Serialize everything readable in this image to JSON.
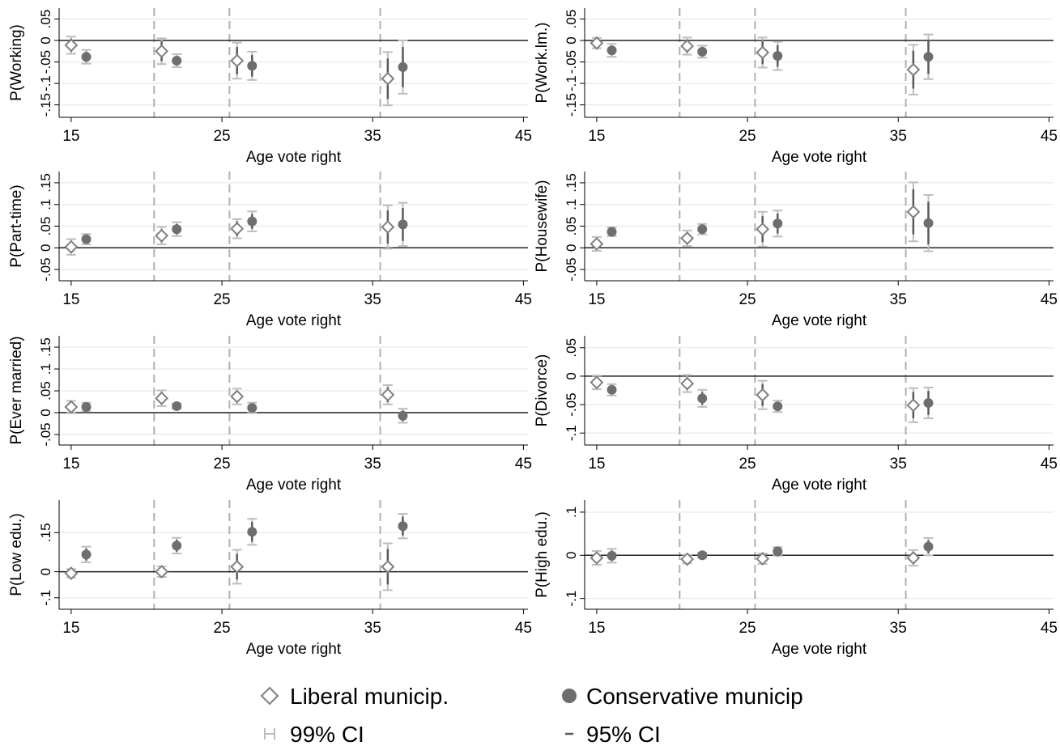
{
  "legend": {
    "series": [
      "Liberal municip.",
      "Conservative municip"
    ],
    "ci": [
      "99% CI",
      "95% CI"
    ]
  },
  "chart_data": [
    {
      "type": "errorbar",
      "ylabel": "P(Working)",
      "xlabel": "Age vote right",
      "xlim": [
        14.2,
        45.3
      ],
      "xticks": [
        15,
        25,
        35,
        45
      ],
      "ylim": [
        -0.179,
        0.0755
      ],
      "yticks": [
        {
          "value": -0.15,
          "label": "-.15"
        },
        {
          "value": -0.1,
          "label": "-.1"
        },
        {
          "value": -0.05,
          "label": "-.05"
        },
        0,
        {
          "value": 0.05,
          "label": ".05"
        }
      ],
      "grid": true,
      "hline": 0,
      "vlines": [
        20.5,
        25.5,
        35.5
      ],
      "series": [
        {
          "marker": "diamond",
          "color": "#7f7f7f",
          "x": [
            15,
            21,
            26,
            36
          ],
          "values": [
            -0.011,
            -0.025,
            -0.047,
            -0.089
          ],
          "ci99_low": [
            -0.031,
            -0.055,
            -0.089,
            -0.151
          ],
          "ci99_high": [
            0.009,
            0.005,
            -0.005,
            -0.027
          ],
          "ci95_low": [
            -0.026,
            -0.048,
            -0.079,
            -0.136
          ],
          "ci95_high": [
            0.004,
            -0.002,
            -0.015,
            -0.042
          ]
        },
        {
          "marker": "circle",
          "color": "#6e6e6e",
          "x": [
            16,
            22,
            27,
            37
          ],
          "values": [
            -0.038,
            -0.047,
            -0.059,
            -0.062
          ],
          "ci99_low": [
            -0.054,
            -0.062,
            -0.092,
            -0.124
          ],
          "ci99_high": [
            -0.022,
            -0.032,
            -0.026,
            0
          ],
          "ci95_low": [
            -0.05,
            -0.058,
            -0.084,
            -0.109
          ],
          "ci95_high": [
            -0.026,
            -0.036,
            -0.034,
            -0.015
          ]
        }
      ]
    },
    {
      "type": "errorbar",
      "ylabel": "P(Work.lm.)",
      "xlabel": "Age vote right",
      "xlim": [
        14.2,
        45.3
      ],
      "xticks": [
        15,
        25,
        35,
        45
      ],
      "ylim": [
        -0.179,
        0.0755
      ],
      "yticks": [
        {
          "value": -0.15,
          "label": "-.15"
        },
        {
          "value": -0.1,
          "label": "-.1"
        },
        {
          "value": -0.05,
          "label": "-.05"
        },
        0,
        {
          "value": 0.05,
          "label": ".05"
        }
      ],
      "grid": true,
      "hline": 0,
      "vlines": [
        20.5,
        25.5,
        35.5
      ],
      "series": [
        {
          "marker": "diamond",
          "color": "#7f7f7f",
          "x": [
            15,
            21,
            26,
            36
          ],
          "values": [
            -0.006,
            -0.013,
            -0.028,
            -0.068
          ],
          "ci99_low": [
            -0.018,
            -0.033,
            -0.063,
            -0.126
          ],
          "ci99_high": [
            0.006,
            0.007,
            0.007,
            -0.01
          ],
          "ci95_low": [
            -0.015,
            -0.028,
            -0.055,
            -0.112
          ],
          "ci95_high": [
            0.003,
            0.002,
            -0.001,
            -0.024
          ]
        },
        {
          "marker": "circle",
          "color": "#6e6e6e",
          "x": [
            16,
            22,
            27,
            37
          ],
          "values": [
            -0.023,
            -0.026,
            -0.036,
            -0.038
          ],
          "ci99_low": [
            -0.038,
            -0.04,
            -0.069,
            -0.09
          ],
          "ci99_high": [
            -0.008,
            -0.012,
            -0.003,
            0.014
          ],
          "ci95_low": [
            -0.034,
            -0.037,
            -0.061,
            -0.078
          ],
          "ci95_high": [
            -0.012,
            -0.015,
            -0.011,
            0.002
          ]
        }
      ]
    },
    {
      "type": "errorbar",
      "ylabel": "P(Part-time)",
      "xlabel": "Age vote right",
      "xlim": [
        14.2,
        45.3
      ],
      "xticks": [
        15,
        25,
        35,
        45
      ],
      "ylim": [
        -0.076,
        0.176
      ],
      "yticks": [
        {
          "value": -0.05,
          "label": "-.05"
        },
        0,
        {
          "value": 0.05,
          "label": ".05"
        },
        {
          "value": 0.1,
          "label": ".1"
        },
        {
          "value": 0.15,
          "label": ".15"
        }
      ],
      "grid": true,
      "hline": 0,
      "vlines": [
        20.5,
        25.5,
        35.5
      ],
      "series": [
        {
          "marker": "diamond",
          "color": "#7f7f7f",
          "x": [
            15,
            21,
            26,
            36
          ],
          "values": [
            0.002,
            0.028,
            0.044,
            0.048
          ],
          "ci99_low": [
            -0.016,
            0.008,
            0.022,
            -0.002
          ],
          "ci99_high": [
            0.02,
            0.048,
            0.066,
            0.098
          ],
          "ci95_low": [
            -0.012,
            0.013,
            0.027,
            0.01
          ],
          "ci95_high": [
            0.016,
            0.043,
            0.061,
            0.086
          ]
        },
        {
          "marker": "circle",
          "color": "#6e6e6e",
          "x": [
            16,
            22,
            27,
            37
          ],
          "values": [
            0.02,
            0.043,
            0.061,
            0.054
          ],
          "ci99_low": [
            0.008,
            0.027,
            0.038,
            0.004
          ],
          "ci99_high": [
            0.032,
            0.059,
            0.084,
            0.104
          ],
          "ci95_low": [
            0.011,
            0.031,
            0.044,
            0.016
          ],
          "ci95_high": [
            0.029,
            0.055,
            0.078,
            0.092
          ]
        }
      ]
    },
    {
      "type": "errorbar",
      "ylabel": "P(Housewife)",
      "xlabel": "Age vote right",
      "xlim": [
        14.2,
        45.3
      ],
      "xticks": [
        15,
        25,
        35,
        45
      ],
      "ylim": [
        -0.076,
        0.176
      ],
      "yticks": [
        {
          "value": -0.05,
          "label": "-.05"
        },
        0,
        {
          "value": 0.05,
          "label": ".05"
        },
        {
          "value": 0.1,
          "label": ".1"
        },
        {
          "value": 0.15,
          "label": ".15"
        }
      ],
      "grid": true,
      "hline": 0,
      "vlines": [
        20.5,
        25.5,
        35.5
      ],
      "series": [
        {
          "marker": "diamond",
          "color": "#7f7f7f",
          "x": [
            15,
            21,
            26,
            36
          ],
          "values": [
            0.009,
            0.022,
            0.043,
            0.083
          ],
          "ci99_low": [
            -0.007,
            0.004,
            0.003,
            0.015
          ],
          "ci99_high": [
            0.025,
            0.04,
            0.083,
            0.151
          ],
          "ci95_low": [
            -0.003,
            0.008,
            0.013,
            0.031
          ],
          "ci95_high": [
            0.021,
            0.036,
            0.073,
            0.135
          ]
        },
        {
          "marker": "circle",
          "color": "#6e6e6e",
          "x": [
            16,
            22,
            27,
            37
          ],
          "values": [
            0.037,
            0.043,
            0.056,
            0.057
          ],
          "ci99_low": [
            0.027,
            0.031,
            0.026,
            -0.008
          ],
          "ci99_high": [
            0.047,
            0.055,
            0.086,
            0.122
          ],
          "ci95_low": [
            0.029,
            0.034,
            0.033,
            0.008
          ],
          "ci95_high": [
            0.045,
            0.052,
            0.079,
            0.106
          ]
        }
      ]
    },
    {
      "type": "errorbar",
      "ylabel": "P(Ever married)",
      "xlabel": "Age vote right",
      "xlim": [
        14.2,
        45.3
      ],
      "xticks": [
        15,
        25,
        35,
        45
      ],
      "ylim": [
        -0.074,
        0.176
      ],
      "yticks": [
        {
          "value": -0.05,
          "label": "-.05"
        },
        0,
        {
          "value": 0.05,
          "label": ".05"
        },
        {
          "value": 0.1,
          "label": ".1"
        },
        {
          "value": 0.15,
          "label": ".15"
        }
      ],
      "grid": true,
      "hline": 0,
      "vlines": [
        20.5,
        25.5,
        35.5
      ],
      "series": [
        {
          "marker": "diamond",
          "color": "#7f7f7f",
          "x": [
            15,
            21,
            26,
            36
          ],
          "values": [
            0.013,
            0.033,
            0.037,
            0.041
          ],
          "ci99_low": [
            -0.001,
            0.015,
            0.019,
            0.019
          ],
          "ci99_high": [
            0.027,
            0.051,
            0.055,
            0.063
          ],
          "ci95_low": [
            0.002,
            0.019,
            0.023,
            0.024
          ],
          "ci95_high": [
            0.024,
            0.047,
            0.051,
            0.058
          ]
        },
        {
          "marker": "circle",
          "color": "#6e6e6e",
          "x": [
            16,
            22,
            27,
            37
          ],
          "values": [
            0.013,
            0.015,
            0.011,
            -0.007
          ],
          "ci99_low": [
            0.003,
            0.009,
            -0.001,
            -0.023
          ],
          "ci99_high": [
            0.023,
            0.021,
            0.023,
            0.009
          ],
          "ci95_low": [
            0.005,
            0.01,
            0.002,
            -0.019
          ],
          "ci95_high": [
            0.021,
            0.02,
            0.02,
            0.005
          ]
        }
      ]
    },
    {
      "type": "errorbar",
      "ylabel": "P(Divorce)",
      "xlabel": "Age vote right",
      "xlim": [
        14.2,
        45.3
      ],
      "xticks": [
        15,
        25,
        35,
        45
      ],
      "ylim": [
        -0.121,
        0.071
      ],
      "yticks": [
        {
          "value": -0.1,
          "label": "-.1"
        },
        {
          "value": -0.05,
          "label": "-.05"
        },
        0,
        {
          "value": 0.05,
          "label": ".05"
        }
      ],
      "grid": true,
      "hline": 0,
      "vlines": [
        20.5,
        25.5,
        35.5
      ],
      "series": [
        {
          "marker": "diamond",
          "color": "#7f7f7f",
          "x": [
            15,
            21,
            26,
            36
          ],
          "values": [
            -0.011,
            -0.013,
            -0.033,
            -0.051
          ],
          "ci99_low": [
            -0.023,
            -0.028,
            -0.058,
            -0.081
          ],
          "ci99_high": [
            0.001,
            0.002,
            -0.008,
            -0.021
          ],
          "ci95_low": [
            -0.02,
            -0.024,
            -0.052,
            -0.074
          ],
          "ci95_high": [
            -0.002,
            -0.002,
            -0.014,
            -0.028
          ]
        },
        {
          "marker": "circle",
          "color": "#6e6e6e",
          "x": [
            16,
            22,
            27,
            37
          ],
          "values": [
            -0.024,
            -0.039,
            -0.053,
            -0.047
          ],
          "ci99_low": [
            -0.034,
            -0.054,
            -0.063,
            -0.074
          ],
          "ci99_high": [
            -0.014,
            -0.024,
            -0.043,
            -0.02
          ],
          "ci95_low": [
            -0.032,
            -0.05,
            -0.061,
            -0.068
          ],
          "ci95_high": [
            -0.016,
            -0.028,
            -0.045,
            -0.026
          ]
        }
      ]
    },
    {
      "type": "errorbar",
      "ylabel": "P(Low edu.)",
      "xlabel": "Age vote right",
      "xlim": [
        14.2,
        45.3
      ],
      "xticks": [
        15,
        25,
        35,
        45
      ],
      "ylim": [
        -0.144,
        0.275
      ],
      "yticks": [
        {
          "value": -0.1,
          "label": "-.1"
        },
        0,
        {
          "value": 0.15,
          "label": ".15"
        }
      ],
      "grid": true,
      "hline": 0,
      "vlines": [
        20.5,
        25.5,
        35.5
      ],
      "series": [
        {
          "marker": "diamond",
          "color": "#7f7f7f",
          "x": [
            15,
            21,
            26,
            36
          ],
          "values": [
            -0.006,
            0,
            0.019,
            0.019
          ],
          "ci99_low": [
            -0.022,
            -0.02,
            -0.046,
            -0.071
          ],
          "ci99_high": [
            0.01,
            0.02,
            0.084,
            0.109
          ],
          "ci95_low": [
            -0.018,
            -0.015,
            -0.03,
            -0.049
          ],
          "ci95_high": [
            0.006,
            0.015,
            0.068,
            0.087
          ]
        },
        {
          "marker": "circle",
          "color": "#6e6e6e",
          "x": [
            16,
            22,
            27,
            37
          ],
          "values": [
            0.066,
            0.1,
            0.153,
            0.175
          ],
          "ci99_low": [
            0.036,
            0.07,
            0.103,
            0.128
          ],
          "ci99_high": [
            0.096,
            0.13,
            0.203,
            0.222
          ],
          "ci95_low": [
            0.043,
            0.077,
            0.115,
            0.139
          ],
          "ci95_high": [
            0.089,
            0.123,
            0.191,
            0.211
          ]
        }
      ]
    },
    {
      "type": "errorbar",
      "ylabel": "P(High edu.)",
      "xlabel": "Age vote right",
      "xlim": [
        14.2,
        45.3
      ],
      "xticks": [
        15,
        25,
        35,
        45
      ],
      "ylim": [
        -0.125,
        0.128
      ],
      "yticks": [
        {
          "value": -0.1,
          "label": "-.1"
        },
        0,
        {
          "value": 0.1,
          "label": ".1"
        }
      ],
      "grid": true,
      "hline": 0,
      "vlines": [
        20.5,
        25.5,
        35.5
      ],
      "series": [
        {
          "marker": "diamond",
          "color": "#7f7f7f",
          "x": [
            15,
            21,
            26,
            36
          ],
          "values": [
            -0.006,
            -0.009,
            -0.008,
            -0.006
          ],
          "ci99_low": [
            -0.022,
            -0.019,
            -0.02,
            -0.024
          ],
          "ci99_high": [
            0.01,
            0.001,
            0.004,
            0.012
          ],
          "ci95_low": [
            -0.018,
            -0.017,
            -0.017,
            -0.02
          ],
          "ci95_high": [
            0.006,
            -0.001,
            0.001,
            0.008
          ]
        },
        {
          "marker": "circle",
          "color": "#6e6e6e",
          "x": [
            16,
            22,
            27,
            37
          ],
          "values": [
            -0.001,
            0,
            0.009,
            0.02
          ],
          "ci99_low": [
            -0.017,
            -0.006,
            -0.001,
            0
          ],
          "ci99_high": [
            0.015,
            0.006,
            0.019,
            0.04
          ],
          "ci95_low": [
            -0.013,
            -0.005,
            0.001,
            0.005
          ],
          "ci95_high": [
            0.011,
            0.005,
            0.017,
            0.035
          ]
        }
      ]
    }
  ]
}
